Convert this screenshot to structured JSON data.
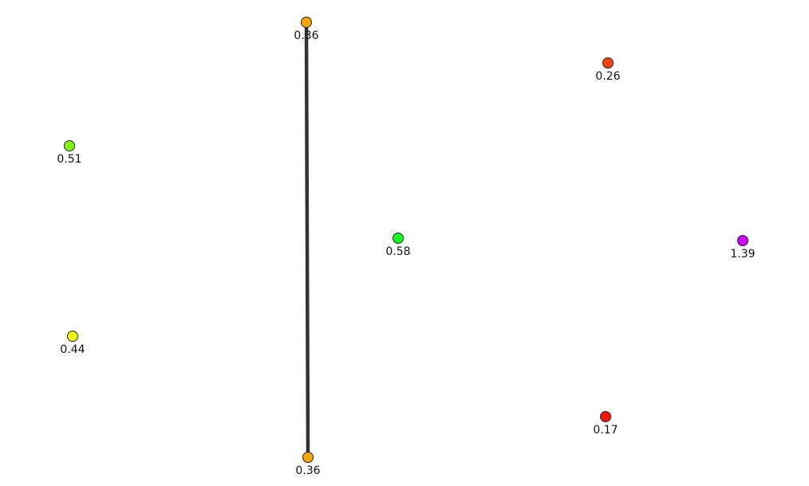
{
  "graph": {
    "nodes": [
      {
        "id": "n1",
        "label": "0.36",
        "color": "#FFA500"
      },
      {
        "id": "n2",
        "label": "0.26",
        "color": "#FF4000"
      },
      {
        "id": "n3",
        "label": "0.51",
        "color": "#80FF00"
      },
      {
        "id": "n4",
        "label": "0.58",
        "color": "#10FF20"
      },
      {
        "id": "n5",
        "label": "1.39",
        "color": "#D000FF"
      },
      {
        "id": "n6",
        "label": "0.44",
        "color": "#F0FF00"
      },
      {
        "id": "n7",
        "label": "0.17",
        "color": "#FF1000"
      },
      {
        "id": "n8",
        "label": "0.36",
        "color": "#FFA500"
      }
    ],
    "edges": [
      {
        "source": "n1",
        "target": "n8",
        "color": "#333333"
      }
    ]
  }
}
